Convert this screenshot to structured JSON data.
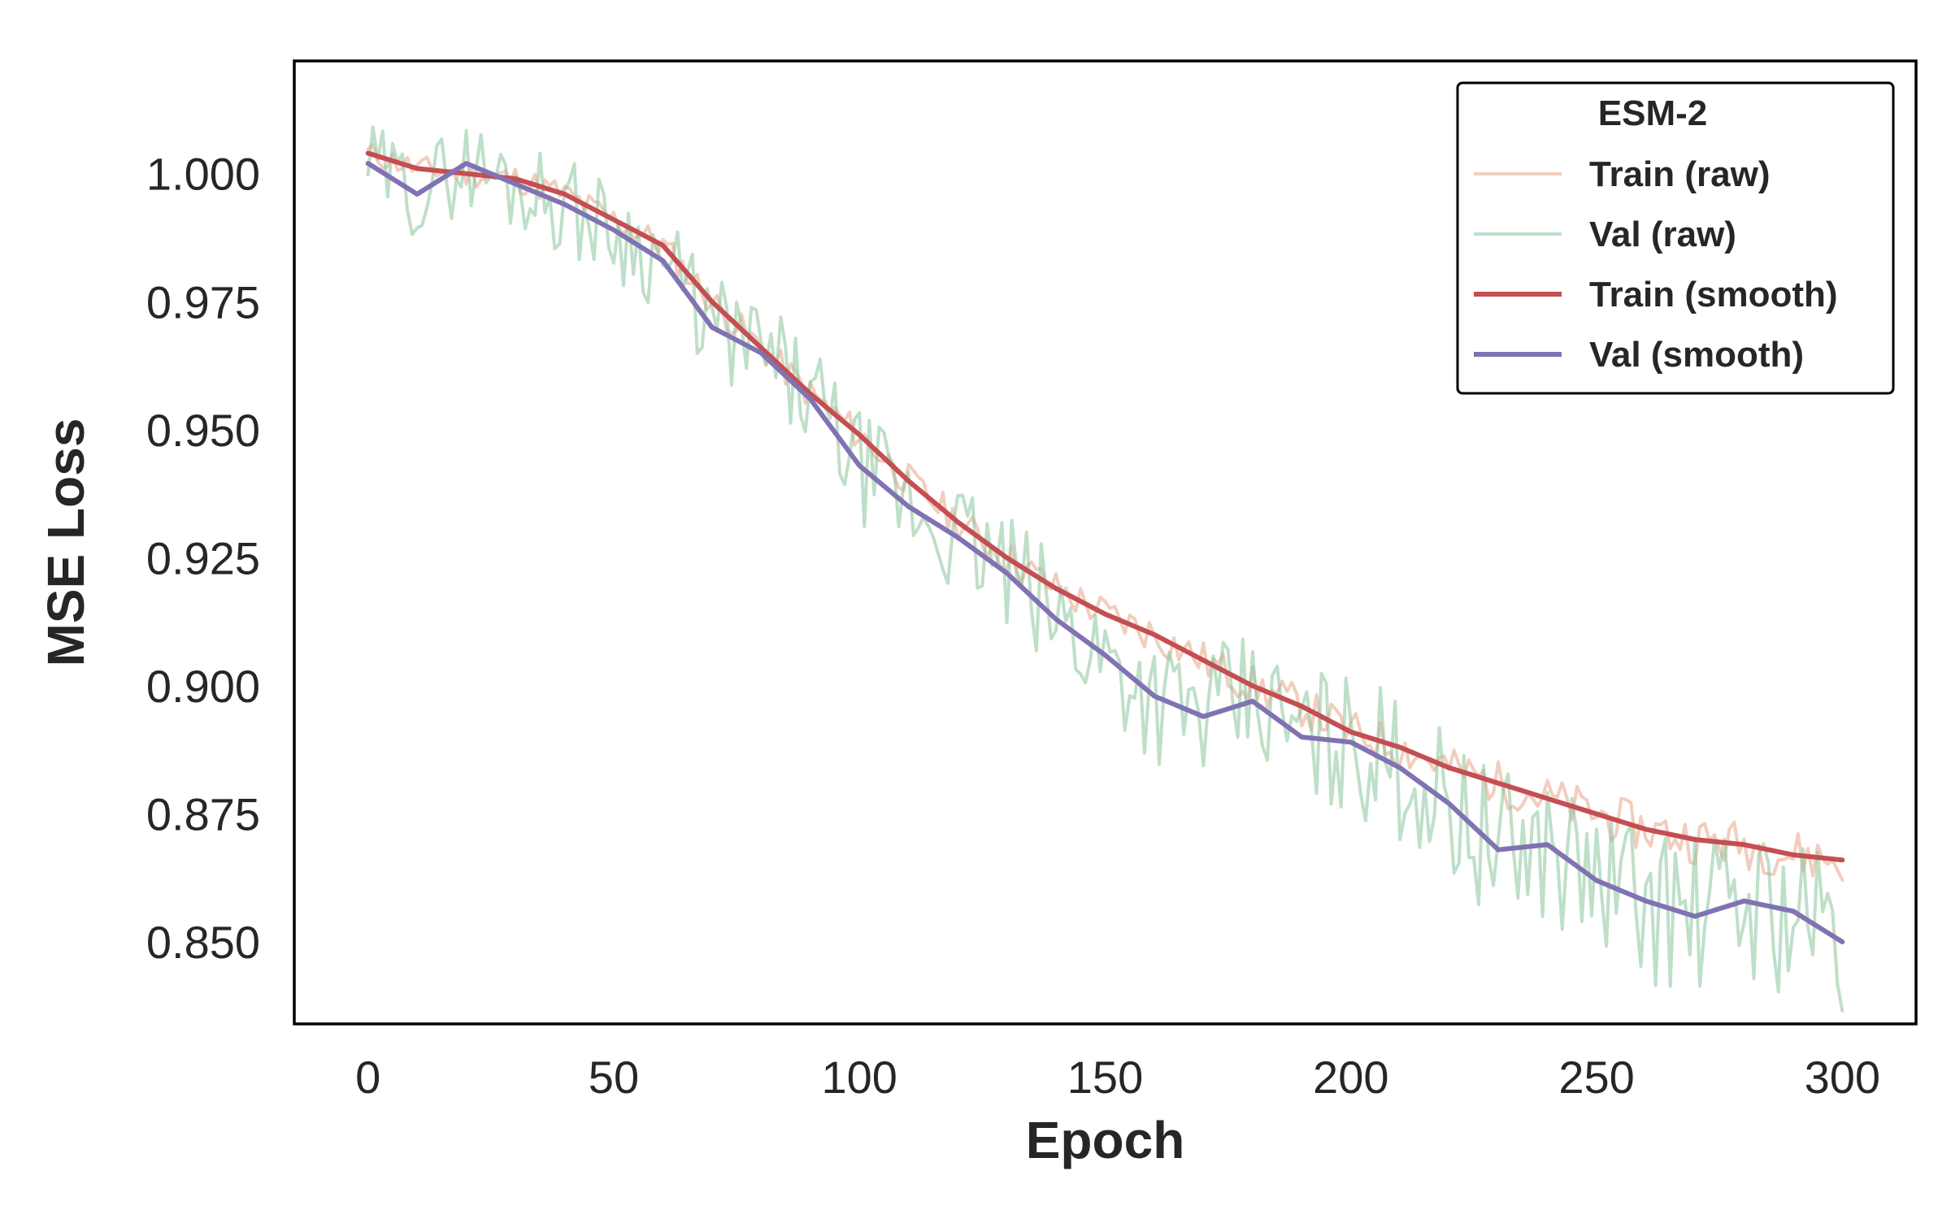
{
  "chart_data": {
    "type": "line",
    "xlabel": "Epoch",
    "ylabel": "MSE Loss",
    "xlim": [
      -15,
      315
    ],
    "ylim": [
      0.834,
      1.022
    ],
    "xticks": [
      0,
      50,
      100,
      150,
      200,
      250,
      300
    ],
    "yticks": [
      0.85,
      0.875,
      0.9,
      0.925,
      0.95,
      0.975,
      1.0
    ],
    "xtick_labels": [
      "0",
      "50",
      "100",
      "150",
      "200",
      "250",
      "300"
    ],
    "ytick_labels": [
      "0.850",
      "0.875",
      "0.900",
      "0.925",
      "0.950",
      "0.975",
      "1.000"
    ],
    "grid": false,
    "legend": {
      "title": "ESM-2",
      "placement": "top-right",
      "entries": [
        "Train (raw)",
        "Val (raw)",
        "Train (smooth)",
        "Val (smooth)"
      ]
    },
    "series": [
      {
        "name": "Train (raw)",
        "color": "#e8a488",
        "opacity": 0.55,
        "x": [
          0,
          10,
          20,
          30,
          40,
          50,
          60,
          70,
          80,
          90,
          100,
          110,
          120,
          130,
          140,
          150,
          160,
          170,
          180,
          190,
          200,
          210,
          220,
          230,
          240,
          250,
          260,
          270,
          280,
          290,
          300
        ],
        "y": [
          1.004,
          1.001,
          1.0,
          0.999,
          0.996,
          0.991,
          0.986,
          0.975,
          0.966,
          0.957,
          0.949,
          0.94,
          0.932,
          0.925,
          0.919,
          0.914,
          0.91,
          0.905,
          0.9,
          0.896,
          0.891,
          0.888,
          0.884,
          0.881,
          0.878,
          0.875,
          0.872,
          0.87,
          0.869,
          0.867,
          0.866
        ]
      },
      {
        "name": "Val (raw)",
        "color": "#88c59a",
        "opacity": 0.55,
        "x": [
          0,
          10,
          20,
          30,
          40,
          50,
          60,
          70,
          80,
          90,
          100,
          110,
          120,
          130,
          140,
          150,
          160,
          170,
          180,
          190,
          200,
          210,
          220,
          230,
          240,
          250,
          260,
          270,
          280,
          290,
          300
        ],
        "y": [
          1.002,
          0.996,
          1.002,
          0.998,
          0.994,
          0.989,
          0.983,
          0.97,
          0.965,
          0.956,
          0.943,
          0.935,
          0.929,
          0.922,
          0.913,
          0.906,
          0.898,
          0.894,
          0.897,
          0.89,
          0.889,
          0.884,
          0.877,
          0.868,
          0.869,
          0.862,
          0.858,
          0.855,
          0.858,
          0.856,
          0.85
        ]
      },
      {
        "name": "Train (smooth)",
        "color": "#c44e52",
        "opacity": 1,
        "x": [
          0,
          10,
          20,
          30,
          40,
          50,
          60,
          70,
          80,
          90,
          100,
          110,
          120,
          130,
          140,
          150,
          160,
          170,
          180,
          190,
          200,
          210,
          220,
          230,
          240,
          250,
          260,
          270,
          280,
          290,
          300
        ],
        "y": [
          1.004,
          1.001,
          1.0,
          0.999,
          0.996,
          0.991,
          0.986,
          0.975,
          0.966,
          0.957,
          0.949,
          0.94,
          0.932,
          0.925,
          0.919,
          0.914,
          0.91,
          0.905,
          0.9,
          0.896,
          0.891,
          0.888,
          0.884,
          0.881,
          0.878,
          0.875,
          0.872,
          0.87,
          0.869,
          0.867,
          0.866
        ]
      },
      {
        "name": "Val (smooth)",
        "color": "#8172b3",
        "opacity": 1,
        "x": [
          0,
          10,
          20,
          30,
          40,
          50,
          60,
          70,
          80,
          90,
          100,
          110,
          120,
          130,
          140,
          150,
          160,
          170,
          180,
          190,
          200,
          210,
          220,
          230,
          240,
          250,
          260,
          270,
          280,
          290,
          300
        ],
        "y": [
          1.002,
          0.996,
          1.002,
          0.998,
          0.994,
          0.989,
          0.983,
          0.97,
          0.965,
          0.956,
          0.943,
          0.935,
          0.929,
          0.922,
          0.913,
          0.906,
          0.898,
          0.894,
          0.897,
          0.89,
          0.889,
          0.884,
          0.877,
          0.868,
          0.869,
          0.862,
          0.858,
          0.855,
          0.858,
          0.856,
          0.85
        ]
      }
    ]
  }
}
